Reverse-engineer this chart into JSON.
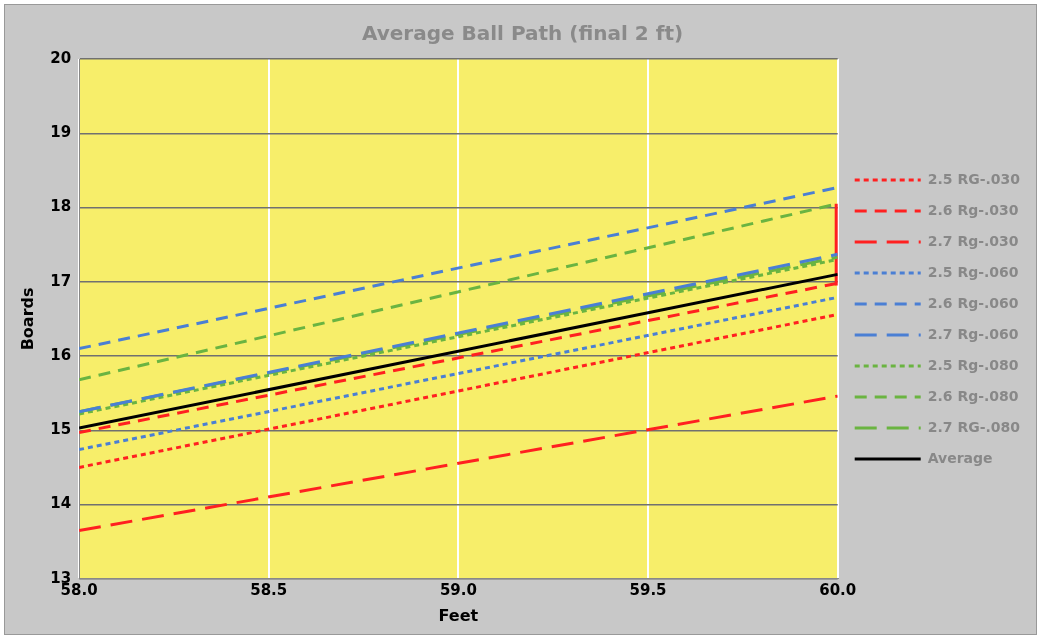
{
  "chart_data": {
    "type": "line",
    "title": "Average Ball Path (final 2 ft)",
    "xlabel": "Feet",
    "ylabel": "Boards",
    "x": [
      58,
      60
    ],
    "series": [
      {
        "name": "2.5 RG-.030",
        "color": "#ff2020",
        "line_style": "dotted",
        "values": [
          14.5,
          16.56
        ]
      },
      {
        "name": "2.6 Rg-.030",
        "color": "#ff2020",
        "line_style": "dashed",
        "values": [
          14.97,
          16.98
        ]
      },
      {
        "name": "2.7 Rg-.030",
        "color": "#ff2020",
        "line_style": "dashed",
        "values": [
          13.65,
          15.46
        ]
      },
      {
        "name": "2.5 Rg-.060",
        "color": "#4a7fd4",
        "line_style": "dotted",
        "values": [
          14.74,
          16.79
        ]
      },
      {
        "name": "2.6 Rg-.060",
        "color": "#4a7fd4",
        "line_style": "dashed",
        "values": [
          16.1,
          18.27
        ]
      },
      {
        "name": "2.7 Rg-.060",
        "color": "#4a7fd4",
        "line_style": "dashed",
        "values": [
          15.25,
          17.37
        ]
      },
      {
        "name": "2.5 Rg-.080",
        "color": "#6ab441",
        "line_style": "dotted",
        "values": [
          15.22,
          17.3
        ]
      },
      {
        "name": "2.6 Rg-.080",
        "color": "#6ab441",
        "line_style": "dashed",
        "values": [
          15.68,
          18.05
        ]
      },
      {
        "name": "2.7 RG-.080",
        "color": "#6ab441",
        "line_style": "dashed",
        "values": [
          15.25,
          17.33
        ]
      },
      {
        "name": "Average",
        "color": "#000000",
        "line_style": "solid",
        "values": [
          15.03,
          17.1
        ]
      },
      {
        "color": "#ff2020",
        "line_style": "solid",
        "x": [
          60,
          60
        ],
        "values": [
          16.95,
          18.05
        ]
      }
    ],
    "xlim": [
      58,
      60
    ],
    "xticks": [
      {
        "value": 58,
        "label": "58.0"
      },
      {
        "value": 58.5,
        "label": "58.5"
      },
      {
        "value": 59,
        "label": "59.0"
      },
      {
        "value": 59.5,
        "label": "59.5"
      },
      {
        "value": 60,
        "label": "60.0"
      }
    ],
    "ylim": [
      13,
      20
    ],
    "yticks": [
      13,
      14,
      15,
      16,
      17,
      18,
      19,
      20
    ],
    "grid": true,
    "legend": "right",
    "marker": "none"
  }
}
